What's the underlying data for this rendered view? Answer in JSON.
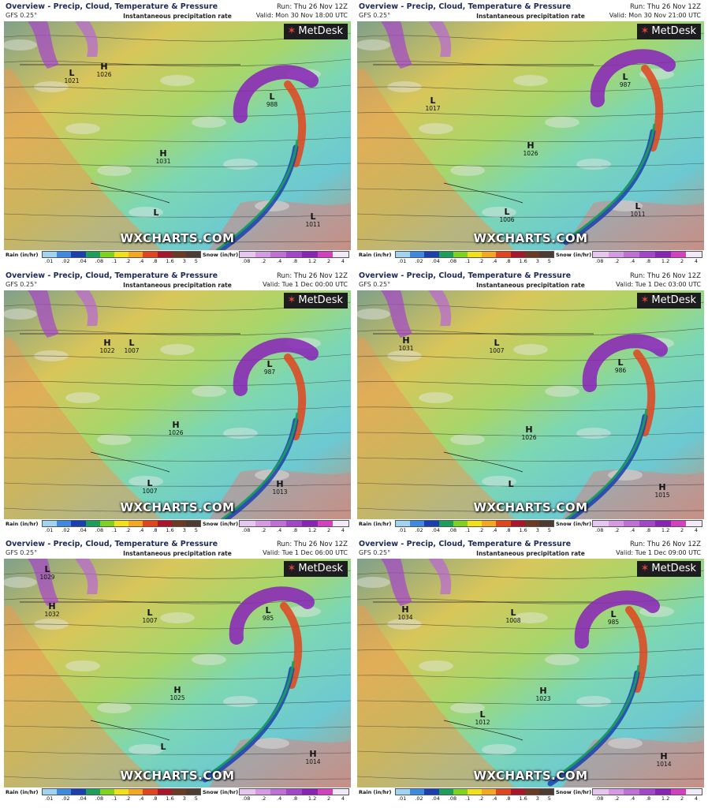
{
  "header": {
    "title": "Overview - Precip, Cloud, Temperature & Pressure",
    "model": "GFS 0.25°",
    "subtitle": "Instantaneous precipitation rate",
    "run": "Run: Thu 26 Nov 12Z"
  },
  "branding": {
    "logo": "MetDesk",
    "watermark": "WXCHARTS.COM"
  },
  "legend": {
    "rain_label": "Rain (in/hr)",
    "snow_label": "Snow (in/hr)",
    "rain_ticks": [
      ".01",
      ".02",
      ".04",
      ".08",
      ".1",
      ".2",
      ".4",
      ".8",
      "1.6",
      "3",
      "5"
    ],
    "snow_ticks": [
      ".08",
      ".2",
      ".4",
      ".8",
      "1.2",
      "2",
      "4"
    ],
    "rain_colors": [
      "#9fd3f0",
      "#3e8ae0",
      "#1b3fb0",
      "#1aa05a",
      "#7ed321",
      "#f2e01a",
      "#f5a623",
      "#e2441c",
      "#a8152c",
      "#6b3a22",
      "#4b3b32"
    ],
    "snow_colors": [
      "#e6c6ef",
      "#d49ae3",
      "#c06fd6",
      "#a545c9",
      "#8a22b8",
      "#d43fc0",
      "#f1e9f5"
    ]
  },
  "panels": [
    {
      "valid": "Valid: Mon 30 Nov 18:00 UTC",
      "labels": [
        {
          "symbol": "L",
          "pressure": "1021"
        },
        {
          "symbol": "H",
          "pressure": "1026"
        },
        {
          "symbol": "L",
          "pressure": "988"
        },
        {
          "symbol": "H",
          "pressure": "1031"
        },
        {
          "symbol": "L",
          "pressure": ""
        },
        {
          "symbol": "L",
          "pressure": "1011"
        }
      ]
    },
    {
      "valid": "Valid: Mon 30 Nov 21:00 UTC",
      "labels": [
        {
          "symbol": "L",
          "pressure": "1017"
        },
        {
          "symbol": "L",
          "pressure": "987"
        },
        {
          "symbol": "H",
          "pressure": "1026"
        },
        {
          "symbol": "L",
          "pressure": "1006"
        },
        {
          "symbol": "L",
          "pressure": "1011"
        }
      ]
    },
    {
      "valid": "Valid: Tue 1 Dec 00:00 UTC",
      "labels": [
        {
          "symbol": "H",
          "pressure": "1022"
        },
        {
          "symbol": "L",
          "pressure": "1007"
        },
        {
          "symbol": "L",
          "pressure": "987"
        },
        {
          "symbol": "H",
          "pressure": "1026"
        },
        {
          "symbol": "L",
          "pressure": "1007"
        },
        {
          "symbol": "H",
          "pressure": "1013"
        }
      ]
    },
    {
      "valid": "Valid: Tue 1 Dec 03:00 UTC",
      "labels": [
        {
          "symbol": "H",
          "pressure": "1031"
        },
        {
          "symbol": "L",
          "pressure": "1007"
        },
        {
          "symbol": "L",
          "pressure": "986"
        },
        {
          "symbol": "H",
          "pressure": "1026"
        },
        {
          "symbol": "L",
          "pressure": ""
        },
        {
          "symbol": "H",
          "pressure": "1015"
        }
      ]
    },
    {
      "valid": "Valid: Tue 1 Dec 06:00 UTC",
      "labels": [
        {
          "symbol": "L",
          "pressure": "1029"
        },
        {
          "symbol": "H",
          "pressure": "1032"
        },
        {
          "symbol": "L",
          "pressure": "1007"
        },
        {
          "symbol": "L",
          "pressure": "985"
        },
        {
          "symbol": "H",
          "pressure": "1025"
        },
        {
          "symbol": "L",
          "pressure": ""
        },
        {
          "symbol": "H",
          "pressure": "1014"
        }
      ]
    },
    {
      "valid": "Valid: Tue 1 Dec 09:00 UTC",
      "labels": [
        {
          "symbol": "H",
          "pressure": "1034"
        },
        {
          "symbol": "L",
          "pressure": "1008"
        },
        {
          "symbol": "L",
          "pressure": "985"
        },
        {
          "symbol": "H",
          "pressure": "1023"
        },
        {
          "symbol": "L",
          "pressure": "1012"
        },
        {
          "symbol": "H",
          "pressure": "1014"
        }
      ]
    }
  ]
}
